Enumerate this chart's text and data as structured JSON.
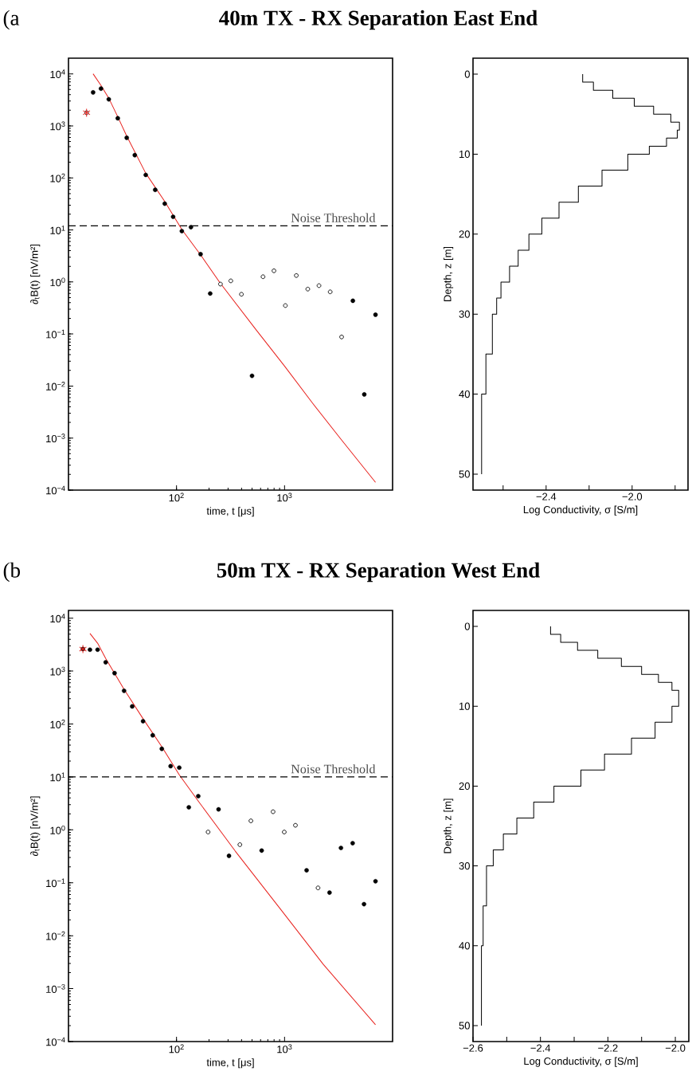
{
  "chart_data": [
    {
      "type": "scatter",
      "title": "40m TX - RX Separation East End",
      "annotations": [
        "(a"
      ],
      "xlabel": "time, t [μs]",
      "ylabel": "∂$_{t}$B(t)  [nV/m²]",
      "log": "xy",
      "xlim": [
        10,
        10000
      ],
      "ylim": [
        0.0001,
        20000
      ],
      "xticks": [
        {
          "value": 100,
          "label": "10$^{2}$"
        },
        {
          "value": 1000,
          "label": "10$^{3}$"
        }
      ],
      "yticks": [
        {
          "value": 0.0001,
          "label": "10$^{−4}$"
        },
        {
          "value": 0.001,
          "label": "10$^{−3}$"
        },
        {
          "value": 0.01,
          "label": "10$^{−2}$"
        },
        {
          "value": 0.1,
          "label": "10$^{−1}$"
        },
        {
          "value": 1,
          "label": "10$^{0}$"
        },
        {
          "value": 10,
          "label": "10$^{1}$"
        },
        {
          "value": 100,
          "label": "10$^{2}$"
        },
        {
          "value": 1000,
          "label": "10$^{3}$"
        },
        {
          "value": 10000,
          "label": "10$^{4}$"
        }
      ],
      "ref_lines": [
        {
          "axis": "y",
          "value": 12,
          "label": "Noise Threshold",
          "line_style": "dashed",
          "color": "#000000"
        }
      ],
      "series": [
        {
          "type": "line",
          "color": "#e8231f",
          "marker": "none",
          "x": [
            16.9,
            19.9,
            23.6,
            28.6,
            34.6,
            51.9,
            77.8,
            112,
            167,
            253,
            551,
            1000,
            1814,
            3298,
            6950
          ],
          "values": [
            10000,
            6070,
            3410,
            1490,
            635,
            123,
            35.3,
            10.2,
            3.33,
            0.957,
            0.117,
            0.0242,
            0.0047,
            0.00097,
            0.000141
          ]
        },
        {
          "type": "scatter",
          "color": "#000000",
          "marker": "circle",
          "x": [
            16.9,
            20,
            23.6,
            28.6,
            34.6,
            41.1,
            51.9,
            63.5,
            77.8,
            93,
            112,
            136,
            167,
            205,
            500,
            4290,
            5470,
            6950
          ],
          "values": [
            4400,
            5200,
            3240,
            1400,
            590,
            274,
            114,
            59,
            32,
            17.9,
            9.5,
            11.3,
            3.42,
            0.6,
            0.0157,
            0.435,
            0.0069,
            0.235
          ]
        },
        {
          "type": "scatter",
          "color": "#ffffff",
          "marker": "circle",
          "x": [
            14.7,
            255,
            318,
            399,
            632,
            798,
            1018,
            1285,
            1641,
            2083,
            2645,
            3375
          ],
          "values": [
            1790,
            0.91,
            1.05,
            0.58,
            1.26,
            1.64,
            0.352,
            1.33,
            0.73,
            0.85,
            0.645,
            0.0877
          ]
        },
        {
          "type": "scatter",
          "color": "#e8231f",
          "marker": "cross",
          "x": [
            14.7
          ],
          "values": [
            1790
          ]
        }
      ]
    },
    {
      "type": "line",
      "xlabel": "Log Conductivity, σ [S/m]",
      "ylabel": "Depth,  z  [m]",
      "xlim": [
        -2.74,
        -1.74
      ],
      "ylim": [
        52,
        -2
      ],
      "xticks": [
        {
          "value": -2.6,
          "label": null
        },
        {
          "value": -2.4,
          "label": "−2.4"
        },
        {
          "value": -2.2,
          "label": null
        },
        {
          "value": -2.0,
          "label": "−2.0"
        },
        {
          "value": -1.8,
          "label": null
        }
      ],
      "yticks": [
        0,
        10,
        20,
        30,
        40,
        50
      ],
      "series": [
        {
          "color": "#000000",
          "marker": "none",
          "x": [
            -2.23,
            -2.23,
            -2.18,
            -2.18,
            -2.09,
            -2.09,
            -1.99,
            -1.99,
            -1.9,
            -1.9,
            -1.82,
            -1.82,
            -1.78,
            -1.78,
            -1.79,
            -1.79,
            -1.84,
            -1.84,
            -1.92,
            -1.92,
            -2.02,
            -2.02,
            -2.14,
            -2.14,
            -2.25,
            -2.25,
            -2.34,
            -2.34,
            -2.42,
            -2.42,
            -2.48,
            -2.48,
            -2.53,
            -2.53,
            -2.57,
            -2.57,
            -2.61,
            -2.61,
            -2.63,
            -2.63,
            -2.65,
            -2.65,
            -2.68,
            -2.68,
            -2.7,
            -2.7
          ],
          "values": [
            0,
            1,
            1,
            2,
            2,
            3,
            3,
            4,
            4,
            5,
            5,
            6,
            6,
            7,
            7,
            8,
            8,
            9,
            9,
            10,
            10,
            12,
            12,
            14,
            14,
            16,
            16,
            18,
            18,
            20,
            20,
            22,
            22,
            24,
            24,
            26,
            26,
            28,
            28,
            30,
            30,
            35,
            35,
            40,
            40,
            50
          ]
        }
      ]
    },
    {
      "type": "scatter",
      "title": "50m TX - RX Separation West End",
      "annotations": [
        "(b"
      ],
      "xlabel": "time, t [μs]",
      "ylabel": "∂$_{t}$B(t)  [nV/m²]",
      "log": "xy",
      "xlim": [
        10,
        10000
      ],
      "ylim": [
        0.0001,
        14000
      ],
      "xticks": [
        {
          "value": 100,
          "label": "10$^{2}$"
        },
        {
          "value": 1000,
          "label": "10$^{3}$"
        }
      ],
      "yticks": [
        {
          "value": 0.0001,
          "label": "10$^{−4}$"
        },
        {
          "value": 0.001,
          "label": "10$^{−3}$"
        },
        {
          "value": 0.01,
          "label": "10$^{−2}$"
        },
        {
          "value": 0.1,
          "label": "10$^{−1}$"
        },
        {
          "value": 1,
          "label": "10$^{0}$"
        },
        {
          "value": 10,
          "label": "10$^{1}$"
        },
        {
          "value": 100,
          "label": "10$^{2}$"
        },
        {
          "value": 1000,
          "label": "10$^{3}$"
        },
        {
          "value": 10000,
          "label": "10$^{4}$"
        }
      ],
      "ref_lines": [
        {
          "axis": "y",
          "value": 10,
          "label": "Noise Threshold",
          "line_style": "dashed",
          "color": "#000000"
        }
      ],
      "series": [
        {
          "type": "line",
          "color": "#e8231f",
          "marker": "none",
          "x": [
            15.8,
            18.6,
            22.1,
            32.7,
            49,
            73.1,
            106,
            159,
            350,
            1000,
            2284,
            6950
          ],
          "values": [
            5140,
            3370,
            1730,
            452,
            126,
            37.2,
            11,
            3.49,
            0.396,
            0.0253,
            0.00287,
            0.000208
          ]
        },
        {
          "type": "scatter",
          "color": "#000000",
          "marker": "circle",
          "x": [
            13.6,
            15.8,
            18.6,
            22.1,
            26.7,
            32.7,
            38.9,
            49,
            60.2,
            73.1,
            88.2,
            106,
            130,
            159,
            245,
            306,
            614,
            1600,
            2608,
            3327,
            4270,
            5440,
            6950
          ],
          "values": [
            2610,
            2540,
            2540,
            1466,
            914,
            424,
            215,
            113,
            61.3,
            34,
            16,
            15,
            2.67,
            4.34,
            2.44,
            0.323,
            0.406,
            0.172,
            0.0652,
            0.456,
            0.56,
            0.0395,
            0.107
          ]
        },
        {
          "type": "scatter",
          "color": "#ffffff",
          "marker": "circle",
          "x": [
            196,
            386,
            488,
            783,
            994,
            1261,
            2042
          ],
          "values": [
            0.91,
            0.525,
            1.48,
            2.2,
            0.91,
            1.22,
            0.08
          ]
        },
        {
          "type": "scatter",
          "color": "#e8231f",
          "marker": "cross",
          "x": [
            13.6
          ],
          "values": [
            2610
          ]
        }
      ]
    },
    {
      "type": "line",
      "xlabel": "Log Conductivity, σ [S/m]",
      "ylabel": "Depth,  z  [m]",
      "xlim": [
        -2.6,
        -1.96
      ],
      "ylim": [
        52,
        -2
      ],
      "xticks": [
        {
          "value": -2.6,
          "label": "−2.6"
        },
        {
          "value": -2.5,
          "label": null
        },
        {
          "value": -2.4,
          "label": "−2.4"
        },
        {
          "value": -2.3,
          "label": null
        },
        {
          "value": -2.2,
          "label": "−2.2"
        },
        {
          "value": -2.1,
          "label": null
        },
        {
          "value": -2.0,
          "label": "−2.0"
        }
      ],
      "yticks": [
        0,
        10,
        20,
        30,
        40,
        50
      ],
      "series": [
        {
          "color": "#000000",
          "marker": "none",
          "x": [
            -2.37,
            -2.37,
            -2.34,
            -2.34,
            -2.29,
            -2.29,
            -2.23,
            -2.23,
            -2.16,
            -2.16,
            -2.1,
            -2.1,
            -2.05,
            -2.05,
            -2.01,
            -2.01,
            -1.99,
            -1.99,
            -2.01,
            -2.01,
            -2.06,
            -2.06,
            -2.13,
            -2.13,
            -2.21,
            -2.21,
            -2.28,
            -2.28,
            -2.36,
            -2.36,
            -2.42,
            -2.42,
            -2.47,
            -2.47,
            -2.51,
            -2.51,
            -2.54,
            -2.54,
            -2.56,
            -2.56,
            -2.57,
            -2.57,
            -2.575,
            -2.575
          ],
          "values": [
            0,
            1,
            1,
            2,
            2,
            3,
            3,
            4,
            4,
            5,
            5,
            6,
            6,
            7,
            7,
            8,
            8,
            10,
            10,
            12,
            12,
            14,
            14,
            16,
            16,
            18,
            18,
            20,
            20,
            22,
            22,
            24,
            24,
            26,
            26,
            28,
            28,
            30,
            30,
            35,
            35,
            40,
            40,
            50
          ]
        }
      ]
    }
  ]
}
